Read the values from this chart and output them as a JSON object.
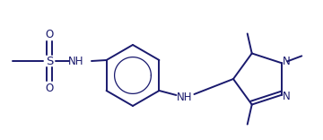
{
  "line_color": "#1a1a6e",
  "bg_color": "#ffffff",
  "lw": 1.4,
  "fs": 8.5,
  "figsize": [
    3.6,
    1.56
  ],
  "dpi": 100,
  "xlim": [
    0,
    360
  ],
  "ylim": [
    0,
    156
  ]
}
